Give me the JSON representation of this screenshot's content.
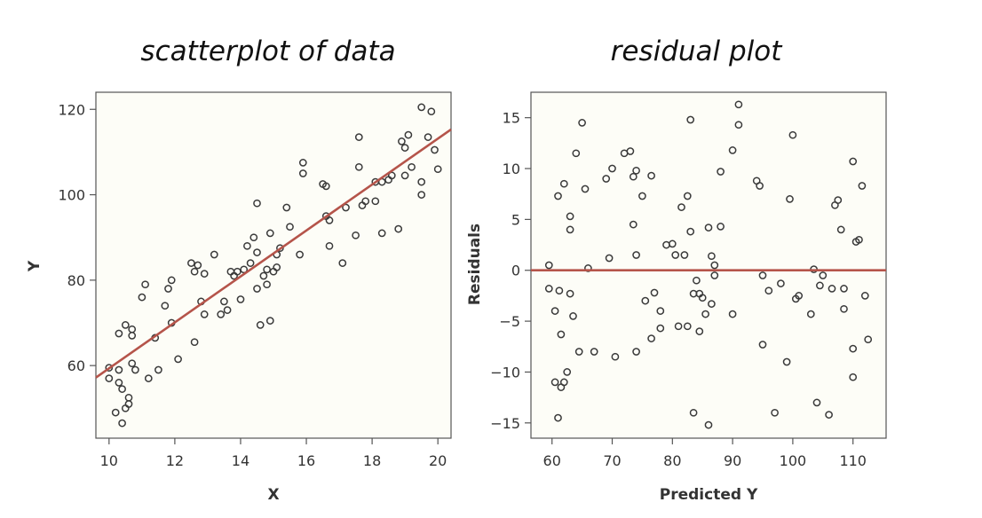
{
  "chart_data": [
    {
      "type": "scatter",
      "title": "scatterplot of data",
      "xlabel": "X",
      "ylabel": "Y",
      "xlim": [
        9.6,
        20.4
      ],
      "ylim": [
        43,
        124
      ],
      "xticks": [
        10,
        12,
        14,
        16,
        18,
        20
      ],
      "yticks": [
        60,
        80,
        100,
        120
      ],
      "grid": false,
      "series": [
        {
          "points": [
            [
              10.0,
              57
            ],
            [
              10.0,
              59.5
            ],
            [
              10.2,
              49
            ],
            [
              10.3,
              56
            ],
            [
              10.3,
              59
            ],
            [
              10.3,
              67.5
            ],
            [
              10.4,
              46.5
            ],
            [
              10.4,
              54.5
            ],
            [
              10.5,
              50
            ],
            [
              10.5,
              69.5
            ],
            [
              10.6,
              51
            ],
            [
              10.6,
              52.5
            ],
            [
              10.7,
              60.5
            ],
            [
              10.7,
              67
            ],
            [
              10.7,
              68.5
            ],
            [
              10.8,
              59
            ],
            [
              11.0,
              76
            ],
            [
              11.1,
              79
            ],
            [
              11.2,
              57
            ],
            [
              11.4,
              66.5
            ],
            [
              11.5,
              59
            ],
            [
              11.7,
              74
            ],
            [
              11.8,
              78
            ],
            [
              11.9,
              70
            ],
            [
              11.9,
              80
            ],
            [
              12.1,
              61.5
            ],
            [
              12.5,
              84
            ],
            [
              12.6,
              82
            ],
            [
              12.6,
              65.5
            ],
            [
              12.7,
              83.5
            ],
            [
              12.8,
              75
            ],
            [
              12.9,
              72
            ],
            [
              12.9,
              81.5
            ],
            [
              13.2,
              86
            ],
            [
              13.4,
              72
            ],
            [
              13.5,
              75
            ],
            [
              13.6,
              73
            ],
            [
              13.7,
              82
            ],
            [
              13.8,
              81
            ],
            [
              13.9,
              82
            ],
            [
              14.0,
              75.5
            ],
            [
              14.1,
              82.5
            ],
            [
              14.2,
              88
            ],
            [
              14.3,
              84
            ],
            [
              14.4,
              90
            ],
            [
              14.5,
              86.5
            ],
            [
              14.5,
              98
            ],
            [
              14.5,
              78
            ],
            [
              14.6,
              69.5
            ],
            [
              14.7,
              81
            ],
            [
              14.8,
              79
            ],
            [
              14.8,
              82.5
            ],
            [
              14.9,
              91
            ],
            [
              14.9,
              70.5
            ],
            [
              15.0,
              82
            ],
            [
              15.1,
              83
            ],
            [
              15.1,
              86
            ],
            [
              15.2,
              87.5
            ],
            [
              15.4,
              97
            ],
            [
              15.5,
              92.5
            ],
            [
              15.8,
              86
            ],
            [
              15.9,
              105
            ],
            [
              15.9,
              107.5
            ],
            [
              16.5,
              102.5
            ],
            [
              16.6,
              95
            ],
            [
              16.6,
              102
            ],
            [
              16.7,
              94
            ],
            [
              16.7,
              88
            ],
            [
              17.1,
              84
            ],
            [
              17.2,
              97
            ],
            [
              17.5,
              90.5
            ],
            [
              17.6,
              106.5
            ],
            [
              17.6,
              113.5
            ],
            [
              17.7,
              97.5
            ],
            [
              17.8,
              98.5
            ],
            [
              18.1,
              98.5
            ],
            [
              18.1,
              103
            ],
            [
              18.3,
              91
            ],
            [
              18.3,
              103
            ],
            [
              18.5,
              103.5
            ],
            [
              18.6,
              104.5
            ],
            [
              18.8,
              92
            ],
            [
              18.9,
              112.5
            ],
            [
              19.0,
              104.5
            ],
            [
              19.0,
              111
            ],
            [
              19.1,
              114
            ],
            [
              19.2,
              106.5
            ],
            [
              19.5,
              100
            ],
            [
              19.5,
              103
            ],
            [
              19.5,
              120.5
            ],
            [
              19.7,
              113.5
            ],
            [
              19.8,
              119.5
            ],
            [
              19.9,
              110.5
            ],
            [
              20.0,
              106
            ]
          ]
        }
      ],
      "fit_line": {
        "x": [
          9.6,
          20.4
        ],
        "y": [
          57.2,
          115.3
        ]
      }
    },
    {
      "type": "scatter",
      "title": "residual plot",
      "xlabel": "Predicted Y",
      "ylabel": "Residuals",
      "xlim": [
        56.5,
        115.5
      ],
      "ylim": [
        -16.5,
        17.5
      ],
      "xticks": [
        60,
        70,
        80,
        90,
        100,
        110
      ],
      "yticks": [
        -15,
        -10,
        -5,
        0,
        5,
        10,
        15
      ],
      "grid": false,
      "series": [
        {
          "points": [
            [
              59.5,
              0.5
            ],
            [
              59.5,
              -1.8
            ],
            [
              60.5,
              -11
            ],
            [
              60.5,
              -4
            ],
            [
              61,
              7.3
            ],
            [
              61,
              -14.5
            ],
            [
              61.2,
              -2
            ],
            [
              61.5,
              -6.3
            ],
            [
              61.5,
              -11.5
            ],
            [
              62,
              8.5
            ],
            [
              62,
              -11
            ],
            [
              62.5,
              -10
            ],
            [
              63,
              5.3
            ],
            [
              63,
              4
            ],
            [
              63,
              -2.3
            ],
            [
              63.5,
              -4.5
            ],
            [
              64,
              11.5
            ],
            [
              64.5,
              -8
            ],
            [
              65,
              14.5
            ],
            [
              65.5,
              8
            ],
            [
              66,
              0.2
            ],
            [
              67,
              -8
            ],
            [
              69,
              9
            ],
            [
              69.5,
              1.2
            ],
            [
              70,
              10
            ],
            [
              70.5,
              -8.5
            ],
            [
              72,
              11.5
            ],
            [
              73,
              11.7
            ],
            [
              73.5,
              9.2
            ],
            [
              73.5,
              4.5
            ],
            [
              74,
              9.8
            ],
            [
              74,
              1.5
            ],
            [
              74,
              -8
            ],
            [
              75,
              7.3
            ],
            [
              75.5,
              -3
            ],
            [
              76.5,
              9.3
            ],
            [
              76.5,
              -6.7
            ],
            [
              77,
              -2.2
            ],
            [
              78,
              -4
            ],
            [
              78,
              -5.7
            ],
            [
              79,
              2.5
            ],
            [
              80,
              2.6
            ],
            [
              80.5,
              1.5
            ],
            [
              81,
              -5.5
            ],
            [
              81.5,
              6.2
            ],
            [
              82,
              1.5
            ],
            [
              82.5,
              7.3
            ],
            [
              82.5,
              -5.5
            ],
            [
              83,
              14.8
            ],
            [
              83,
              3.8
            ],
            [
              83.5,
              -14
            ],
            [
              83.5,
              -2.3
            ],
            [
              84,
              -1
            ],
            [
              84.5,
              -2.3
            ],
            [
              84.5,
              -6
            ],
            [
              85,
              -2.7
            ],
            [
              85.5,
              -4.3
            ],
            [
              86,
              4.2
            ],
            [
              86,
              -15.2
            ],
            [
              86.5,
              1.4
            ],
            [
              86.5,
              -3.3
            ],
            [
              87,
              0.5
            ],
            [
              87,
              -0.5
            ],
            [
              88,
              9.7
            ],
            [
              88,
              4.3
            ],
            [
              90,
              11.8
            ],
            [
              90,
              -4.3
            ],
            [
              91,
              14.3
            ],
            [
              91,
              16.3
            ],
            [
              94,
              8.8
            ],
            [
              94.5,
              8.3
            ],
            [
              95,
              -0.5
            ],
            [
              95,
              -7.3
            ],
            [
              96,
              -2
            ],
            [
              97,
              -14
            ],
            [
              98,
              -1.3
            ],
            [
              99,
              -9
            ],
            [
              99.5,
              7
            ],
            [
              100,
              13.3
            ],
            [
              100.5,
              -2.8
            ],
            [
              101,
              -2.5
            ],
            [
              103,
              -4.3
            ],
            [
              103.5,
              0.1
            ],
            [
              104,
              -13
            ],
            [
              104.5,
              -1.5
            ],
            [
              105,
              -0.5
            ],
            [
              106,
              -14.2
            ],
            [
              106.5,
              -1.8
            ],
            [
              107,
              6.4
            ],
            [
              107.5,
              6.9
            ],
            [
              108,
              4
            ],
            [
              108.5,
              -1.8
            ],
            [
              108.5,
              -3.8
            ],
            [
              110,
              10.7
            ],
            [
              110,
              -7.7
            ],
            [
              110,
              -10.5
            ],
            [
              110.5,
              2.8
            ],
            [
              111,
              3
            ],
            [
              111.5,
              8.3
            ],
            [
              112,
              -2.5
            ],
            [
              112.5,
              -6.8
            ]
          ]
        }
      ],
      "fit_line": {
        "x": [
          56.5,
          115.5
        ],
        "y": [
          0,
          0
        ]
      }
    }
  ]
}
